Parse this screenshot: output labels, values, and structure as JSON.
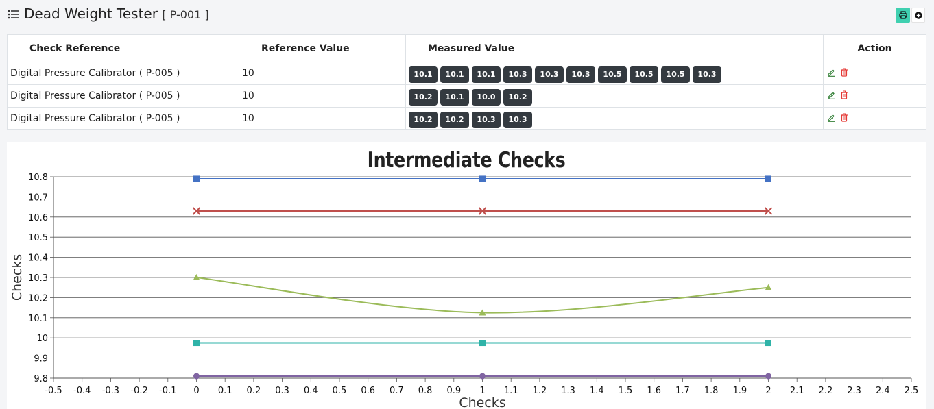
{
  "header": {
    "title": "Dead Weight Tester",
    "code": "[ P-001 ]"
  },
  "icons": {
    "menu": "list-icon",
    "print": "printer-icon",
    "add": "plus-circle-icon",
    "edit": "pencil-icon",
    "delete": "trash-icon"
  },
  "colors": {
    "print_button": "#3fd0b0",
    "badge": "#343a40",
    "edit": "#2e7d32",
    "delete": "#e53935"
  },
  "table": {
    "headers": [
      "Check Reference",
      "Reference Value",
      "Measured Value",
      "Action"
    ],
    "rows": [
      {
        "reference": "Digital Pressure Calibrator ( P-005 )",
        "value": "10",
        "measured": [
          "10.1",
          "10.1",
          "10.1",
          "10.3",
          "10.3",
          "10.3",
          "10.5",
          "10.5",
          "10.5",
          "10.3"
        ]
      },
      {
        "reference": "Digital Pressure Calibrator ( P-005 )",
        "value": "10",
        "measured": [
          "10.2",
          "10.1",
          "10.0",
          "10.2"
        ]
      },
      {
        "reference": "Digital Pressure Calibrator ( P-005 )",
        "value": "10",
        "measured": [
          "10.2",
          "10.2",
          "10.3",
          "10.3"
        ]
      }
    ]
  },
  "chart_data": {
    "type": "line",
    "title": "Intermediate Checks",
    "xlabel": "Checks",
    "ylabel": "Checks",
    "xlim": [
      -0.5,
      2.5
    ],
    "ylim": [
      9.8,
      10.8
    ],
    "x_ticks": [
      "-0.5",
      "-0.4",
      "-0.3",
      "-0.2",
      "-0.1",
      "0",
      "0.1",
      "0.2",
      "0.3",
      "0.4",
      "0.5",
      "0.6",
      "0.7",
      "0.8",
      "0.9",
      "1",
      "1.1",
      "1.2",
      "1.3",
      "1.4",
      "1.5",
      "1.6",
      "1.7",
      "1.8",
      "1.9",
      "2",
      "2.1",
      "2.2",
      "2.3",
      "2.4",
      "2.5"
    ],
    "y_ticks": [
      "9.8",
      "9.9",
      "10",
      "10.1",
      "10.2",
      "10.3",
      "10.4",
      "10.5",
      "10.6",
      "10.7",
      "10.8"
    ],
    "grid": true,
    "x": [
      0,
      1,
      2
    ],
    "series": [
      {
        "values": [
          10.79,
          10.79,
          10.79
        ],
        "color": "#4472c4",
        "marker": "square"
      },
      {
        "values": [
          10.63,
          10.63,
          10.63
        ],
        "color": "#c0504d",
        "marker": "x"
      },
      {
        "values": [
          10.3,
          10.125,
          10.25
        ],
        "color": "#9bbb59",
        "marker": "triangle",
        "smooth": true
      },
      {
        "values": [
          9.975,
          9.975,
          9.975
        ],
        "color": "#2fb3a8",
        "marker": "square"
      },
      {
        "values": [
          9.81,
          9.81,
          9.81
        ],
        "color": "#8064a2",
        "marker": "circle"
      }
    ]
  }
}
